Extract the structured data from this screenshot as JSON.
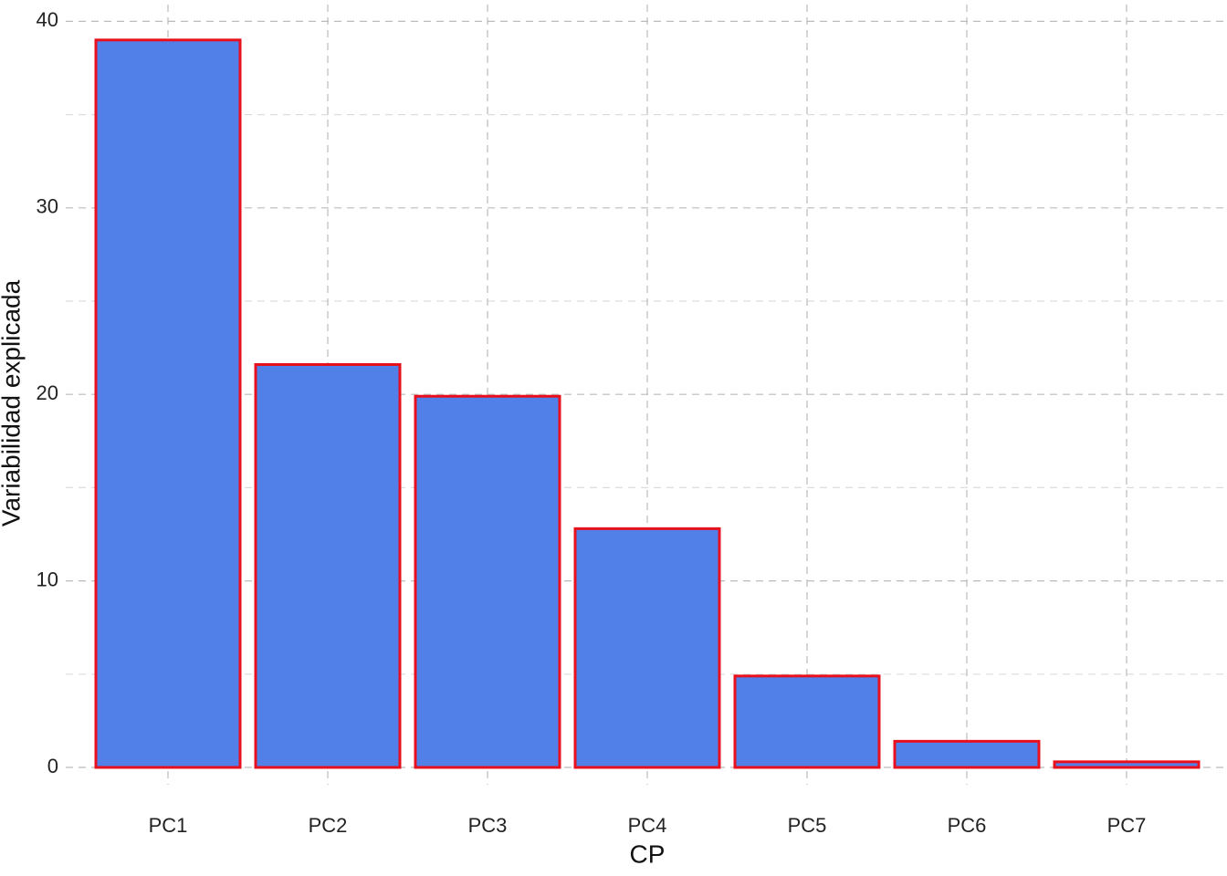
{
  "chart_data": {
    "type": "bar",
    "x_label": "CP",
    "y_label": "Variabilidad explicada",
    "categories": [
      "PC1",
      "PC2",
      "PC3",
      "PC4",
      "PC5",
      "PC6",
      "PC7"
    ],
    "values": [
      39.0,
      21.6,
      19.9,
      12.8,
      4.9,
      1.4,
      0.3
    ],
    "color": "#5280e9",
    "edge_color": "#e8101c",
    "ylim": [
      -0.93,
      40.9
    ],
    "yticks": [
      0,
      10,
      20,
      30,
      40
    ],
    "grid": true,
    "minor_grid": true
  }
}
